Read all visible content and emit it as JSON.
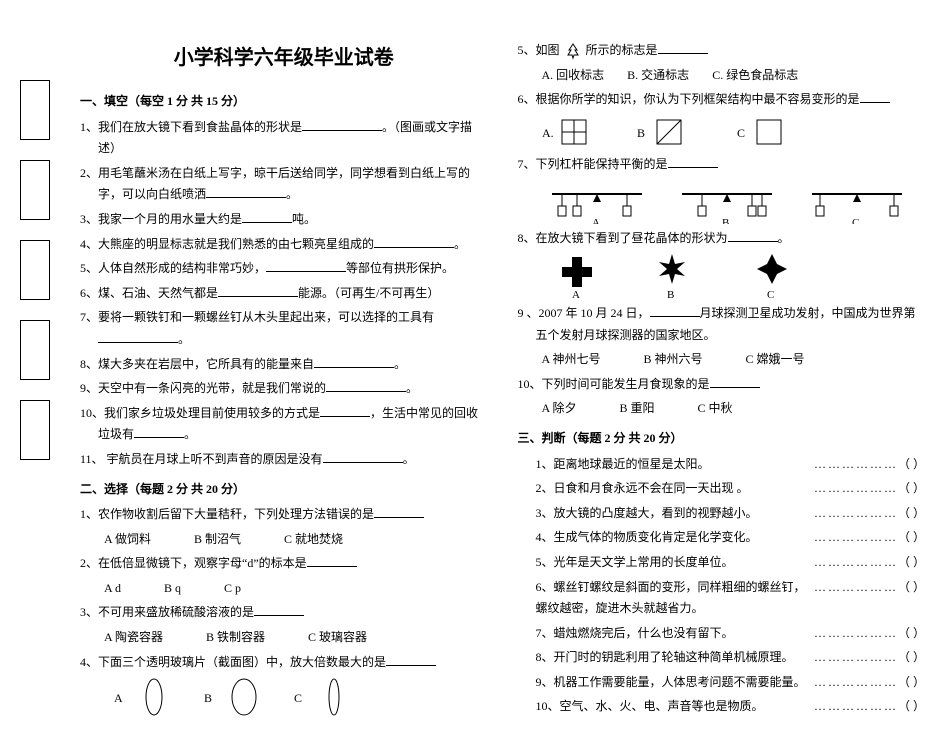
{
  "title": "小学科学六年级毕业试卷",
  "sections": {
    "fill": {
      "header": "一、填空（每空 1 分 共 15 分）",
      "items": [
        "1、我们在放大镜下看到食盐晶体的形状是",
        "（图画或文字描述）",
        "2、用毛笔蘸米汤在白纸上写字，晾干后送给同学，同学想看到白纸上写的字，可以向白纸喷洒",
        "3、我家一个月的用水量大约是",
        "吨。",
        "4、大熊座的明显标志就是我们熟悉的由七颗亮星组成的",
        "5、人体自然形成的结构非常巧妙，",
        "等部位有拱形保护。",
        "6、煤、石油、天然气都是",
        "能源。（可再生/不可再生）",
        "7、要将一颗铁钉和一颗螺丝钉从木头里起出来，可以选择的工具有",
        "8、煤大多夹在岩层中，它所具有的能量来自",
        "9、天空中有一条闪亮的光带，就是我们常说的",
        "10、我们家乡垃圾处理目前使用较多的方式是",
        "，生活中常见的回收垃圾有",
        "11、 宇航员在月球上听不到声音的原因是没有"
      ]
    },
    "choice": {
      "header": "二、选择（每题 2 分 共 20 分）",
      "q1": "1、农作物收割后留下大量秸秆，下列处理方法错误的是",
      "q1opts": {
        "a": "A 做饲料",
        "b": "B 制沼气",
        "c": "C 就地焚烧"
      },
      "q2": "2、在低倍显微镜下，观察字母“d”的标本是",
      "q2opts": {
        "a": "A    d",
        "b": "B    q",
        "c": "C    p"
      },
      "q3": "3、不可用来盛放稀硫酸溶液的是",
      "q3opts": {
        "a": "A 陶瓷容器",
        "b": "B 铁制容器",
        "c": "C 玻璃容器"
      },
      "q4": "4、下面三个透明玻璃片（截面图）中，放大倍数最大的是"
    },
    "right": {
      "q5": "5、如图",
      "q5tail": "所示的标志是",
      "q5opts": {
        "a": "A. 回收标志",
        "b": "B. 交通标志",
        "c": "C. 绿色食品标志"
      },
      "q6": "6、根据你所学的知识，你认为下列框架结构中最不容易变形的是",
      "q7": "7、下列杠杆能保持平衡的是",
      "q8": "8、在放大镜下看到了昼花晶体的形状为",
      "q9": "9 、2007 年 10 月 24 日，",
      "q9tail": "月球探测卫星成功发射，中国成为世界第五个发射月球探测器的国家地区。",
      "q9opts": {
        "a": "A  神州七号",
        "b": "B  神州六号",
        "c": "C  嫦娥一号"
      },
      "q10": "10、下列时间可能发生月食现象的是",
      "q10opts": {
        "a": "A  除夕",
        "b": "B  重阳",
        "c": "C  中秋"
      }
    },
    "judge": {
      "header": "三、判断（每题 2 分 共 20 分）",
      "items": [
        "1、距离地球最近的恒星是太阳。",
        "2、日食和月食永远不会在同一天出现 。",
        "3、放大镜的凸度越大，看到的视野越小。",
        "4、生成气体的物质变化肯定是化学变化。",
        "5、光年是天文学上常用的长度单位。",
        "6、螺丝钉螺纹是斜面的变形，同样粗细的螺丝钉，螺纹越密，旋进木头就越省力。",
        "7、蜡烛燃烧完后，什么也没有留下。",
        "8、开门时的钥匙利用了轮轴这种简单机械原理。",
        "9、机器工作需要能量，人体思考问题不需要能量。",
        "10、空气、水、火、电、声音等也是物质。"
      ]
    }
  },
  "labels": {
    "a": "A",
    "b": "B",
    "c": "C"
  }
}
